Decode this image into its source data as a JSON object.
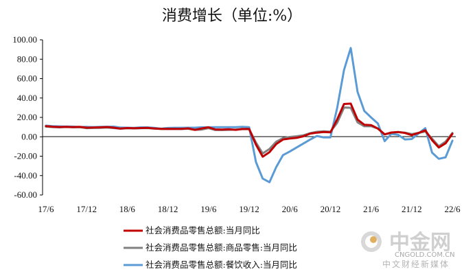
{
  "chart_data": {
    "type": "line",
    "title": "消费增长（单位:%）",
    "ylim": [
      -60,
      100
    ],
    "yticks": [
      "100.00",
      "80.00",
      "60.00",
      "40.00",
      "20.00",
      "0.00",
      "-20.00",
      "-40.00",
      "-60.00"
    ],
    "xticks": [
      "17/6",
      "17/12",
      "18/6",
      "18/12",
      "19/6",
      "19/12",
      "20/6",
      "20/12",
      "21/6",
      "21/12",
      "22/6"
    ],
    "x": [
      "17/6",
      "17/7",
      "17/8",
      "17/9",
      "17/10",
      "17/11",
      "17/12",
      "18/1",
      "18/2",
      "18/3",
      "18/4",
      "18/5",
      "18/6",
      "18/7",
      "18/8",
      "18/9",
      "18/10",
      "18/11",
      "18/12",
      "19/1",
      "19/2",
      "19/3",
      "19/4",
      "19/5",
      "19/6",
      "19/7",
      "19/8",
      "19/9",
      "19/10",
      "19/11",
      "19/12",
      "20/1",
      "20/2",
      "20/3",
      "20/4",
      "20/5",
      "20/6",
      "20/7",
      "20/8",
      "20/9",
      "20/10",
      "20/11",
      "20/12",
      "21/1",
      "21/2",
      "21/3",
      "21/4",
      "21/5",
      "21/6",
      "21/7",
      "21/8",
      "21/9",
      "21/10",
      "21/11",
      "21/12",
      "22/1",
      "22/2",
      "22/3",
      "22/4",
      "22/5",
      "22/6"
    ],
    "series": [
      {
        "name": "社会消费品零售总额:当月同比",
        "color": "#c00000",
        "values": [
          11.0,
          10.4,
          10.1,
          10.3,
          10.0,
          10.2,
          9.4,
          9.5,
          9.7,
          10.1,
          9.4,
          8.5,
          9.0,
          8.8,
          9.0,
          9.2,
          8.6,
          8.1,
          8.2,
          8.2,
          8.2,
          8.7,
          7.2,
          8.6,
          9.8,
          7.6,
          7.5,
          7.8,
          7.2,
          8.0,
          8.0,
          -8.0,
          -20.5,
          -15.8,
          -7.5,
          -2.8,
          -1.8,
          -1.1,
          0.5,
          3.3,
          4.3,
          5.0,
          4.6,
          18.0,
          33.8,
          34.2,
          17.7,
          12.4,
          12.1,
          8.5,
          2.5,
          4.4,
          4.9,
          3.9,
          1.7,
          4.0,
          6.7,
          -3.5,
          -11.1,
          -6.7,
          3.1
        ]
      },
      {
        "name": "社会消费品零售总额:商品零售:当月同比",
        "color": "#808080",
        "values": [
          10.5,
          10.0,
          9.7,
          10.1,
          9.8,
          9.9,
          8.9,
          9.1,
          9.2,
          9.5,
          9.0,
          8.3,
          8.9,
          8.6,
          8.8,
          9.0,
          8.4,
          8.1,
          8.0,
          8.0,
          8.0,
          8.3,
          7.2,
          7.5,
          8.9,
          7.0,
          7.0,
          7.2,
          7.4,
          7.9,
          7.9,
          -6.0,
          -17.2,
          -12.6,
          -5.0,
          -1.4,
          -0.2,
          0.5,
          1.5,
          3.7,
          5.1,
          5.7,
          5.2,
          14.5,
          30.2,
          29.9,
          14.9,
          10.9,
          11.0,
          8.4,
          2.5,
          3.9,
          4.9,
          4.3,
          2.7,
          4.0,
          5.5,
          -1.9,
          -9.7,
          -5.0,
          3.9
        ]
      },
      {
        "name": "社会消费品零售总额:餐饮收入:当月同比",
        "color": "#5b9bd5",
        "values": [
          11.5,
          11.0,
          10.7,
          10.6,
          10.5,
          10.1,
          10.2,
          10.0,
          10.3,
          10.4,
          10.5,
          9.5,
          9.4,
          9.2,
          9.7,
          9.7,
          9.2,
          8.4,
          9.1,
          9.3,
          9.3,
          9.4,
          9.4,
          9.8,
          9.8,
          9.9,
          9.9,
          9.9,
          9.9,
          10.3,
          9.9,
          -26.0,
          -43.1,
          -46.8,
          -31.1,
          -18.9,
          -15.2,
          -11.0,
          -7.0,
          -2.9,
          0.8,
          -0.6,
          -0.6,
          30.0,
          68.9,
          91.6,
          46.4,
          26.6,
          20.0,
          13.7,
          -4.5,
          3.1,
          2.0,
          -2.7,
          -2.3,
          3.3,
          8.9,
          -16.4,
          -22.7,
          -21.1,
          -4.0
        ]
      }
    ]
  },
  "watermark": {
    "brand": "中金网",
    "url": "CNGOLD.COM.CN",
    "tagline": "中文财经新媒体"
  }
}
